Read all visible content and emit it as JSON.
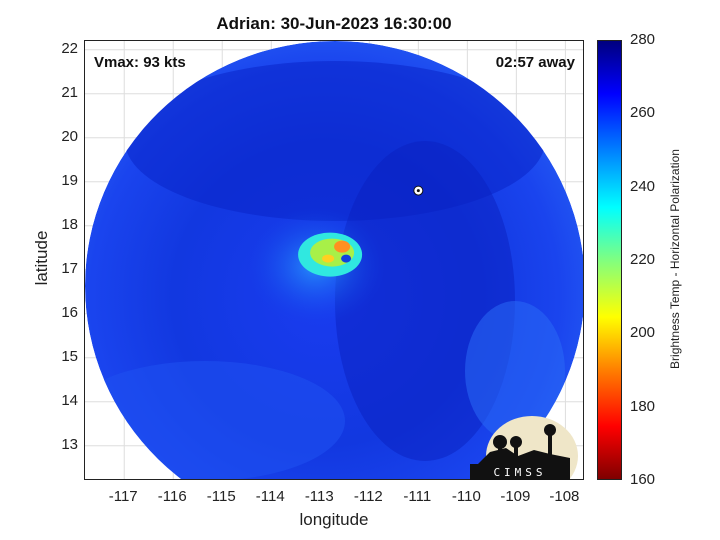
{
  "title": "Adrian: 30-Jun-2023 16:30:00",
  "vmax_text": "Vmax: 93 kts",
  "away_text": "02:57 away",
  "xlabel": "longitude",
  "ylabel": "latitude",
  "colorbar_label": "Brightness Temp - Horizontal Polarization",
  "colorbar_ticks": [
    "280",
    "260",
    "240",
    "220",
    "200",
    "180",
    "160"
  ],
  "x_ticks": [
    "-117",
    "-116",
    "-115",
    "-114",
    "-113",
    "-112",
    "-111",
    "-110",
    "-109",
    "-108"
  ],
  "y_ticks": [
    "22",
    "21",
    "20",
    "19",
    "18",
    "17",
    "16",
    "15",
    "14",
    "13"
  ],
  "logo_text": "CIMSS",
  "map": {
    "lon_range": [
      -117.8,
      -107.6
    ],
    "lat_range": [
      12.2,
      22.2
    ],
    "storm_center": {
      "lon": -112.8,
      "lat": 17.3
    },
    "marker": {
      "lon": -111.0,
      "lat": 18.8
    },
    "colormap": "jet",
    "colorbar_range": [
      160,
      280
    ]
  }
}
